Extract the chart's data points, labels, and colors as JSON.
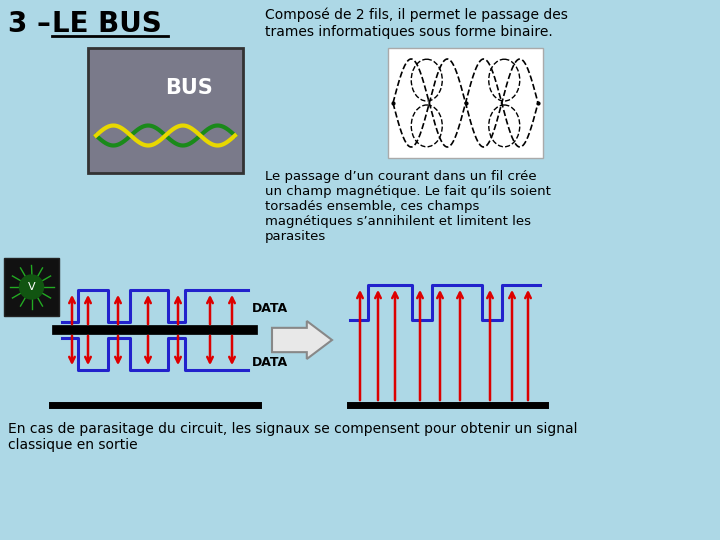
{
  "background_color": "#add8e6",
  "title_text": "3 – LE BUS",
  "top_right_text": "Composé de 2 fils, il permet le passage des\ntrames informatiques sous forme binaire.",
  "mid_right_text": "Le passage d’un courant dans un fil crée\nun champ magnétique. Le fait qu’ils soient\ntorsadés ensemble, ces champs\nmagnétiques s’annihilent et limitent les\nparasites",
  "bottom_text": "En cas de parasitage du circuit, les signaux se compensent pour obtenir un signal\nclassique en sortie",
  "blue_color": "#2222cc",
  "red_color": "#dd0000",
  "black_color": "#000000",
  "bg_light": "#b8d8e0"
}
